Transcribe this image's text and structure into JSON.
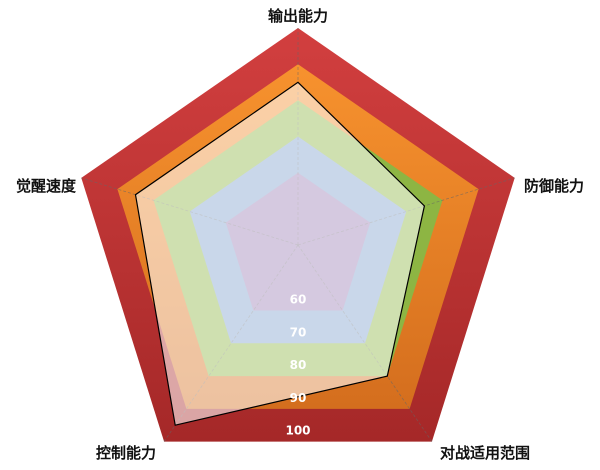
{
  "chart_data": {
    "type": "radar",
    "title": "",
    "categories": [
      "输出能力",
      "防御能力",
      "对战适用范围",
      "控制能力",
      "觉醒速度"
    ],
    "series": [
      {
        "values": [
          85,
          75,
          80,
          95,
          85
        ],
        "color": "#000000"
      }
    ],
    "rings": [
      {
        "value": 60,
        "color": "#9B7FB5"
      },
      {
        "value": 70,
        "color": "#7FA0CC"
      },
      {
        "value": 80,
        "color": "#8DB543"
      },
      {
        "value": 90,
        "color": "#F28B2B"
      },
      {
        "value": 100,
        "color": "#C0383A"
      }
    ],
    "tick_labels": [
      "60",
      "70",
      "80",
      "90",
      "100"
    ],
    "grid": true
  }
}
